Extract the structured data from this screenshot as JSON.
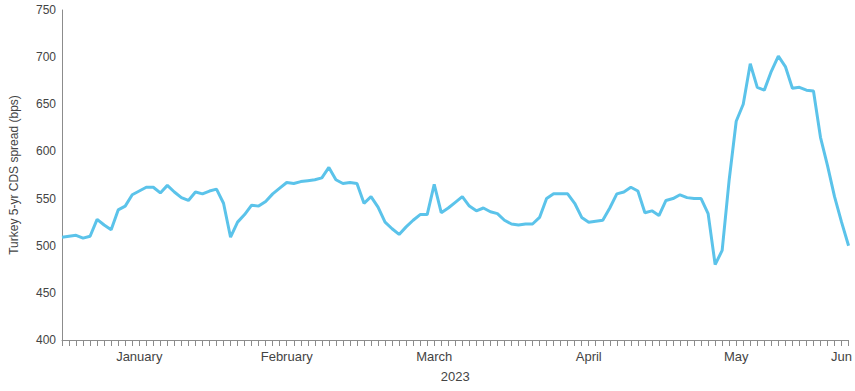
{
  "chart_data": {
    "type": "line",
    "xlabel": "2023",
    "ylabel": "Turkey 5-yr CDS spread (bps)",
    "categories": [
      null,
      null,
      null,
      null,
      null,
      null,
      null,
      null,
      null,
      null,
      null,
      "January",
      null,
      null,
      null,
      null,
      null,
      null,
      null,
      null,
      null,
      null,
      null,
      null,
      null,
      null,
      null,
      null,
      null,
      null,
      null,
      null,
      "February",
      null,
      null,
      null,
      null,
      null,
      null,
      null,
      null,
      null,
      null,
      null,
      null,
      null,
      null,
      null,
      null,
      null,
      null,
      null,
      null,
      "March",
      null,
      null,
      null,
      null,
      null,
      null,
      null,
      null,
      null,
      null,
      null,
      null,
      null,
      null,
      null,
      null,
      null,
      null,
      null,
      null,
      null,
      "April",
      null,
      null,
      null,
      null,
      null,
      null,
      null,
      null,
      null,
      null,
      null,
      null,
      null,
      null,
      null,
      null,
      null,
      null,
      null,
      null,
      "May",
      null,
      null,
      null,
      null,
      null,
      null,
      null,
      null,
      null,
      null,
      null,
      null,
      null,
      null,
      "Jun",
      null
    ],
    "values": [
      509,
      510,
      511,
      508,
      510,
      528,
      522,
      517,
      538,
      542,
      554,
      558,
      562,
      562,
      556,
      564,
      557,
      551,
      548,
      557,
      555,
      558,
      560,
      545,
      509,
      525,
      533,
      543,
      542,
      547,
      555,
      561,
      567,
      566,
      568,
      569,
      570,
      572,
      583,
      570,
      566,
      567,
      566,
      545,
      552,
      541,
      525,
      518,
      512,
      520,
      527,
      533,
      533,
      565,
      535,
      540,
      546,
      552,
      542,
      537,
      540,
      536,
      534,
      527,
      523,
      522,
      523,
      523,
      530,
      550,
      555,
      555,
      555,
      545,
      530,
      525,
      526,
      527,
      540,
      555,
      557,
      562,
      558,
      535,
      537,
      532,
      548,
      550,
      554,
      551,
      550,
      550,
      534,
      480,
      495,
      570,
      632,
      650,
      693,
      668,
      665,
      685,
      701,
      690,
      667,
      668,
      665,
      664,
      615,
      585,
      552,
      525,
      500
    ],
    "color": "#5bc3ea",
    "ylim": [
      400,
      750
    ],
    "yticks": [
      400,
      450,
      500,
      550,
      600,
      650,
      700,
      750
    ],
    "grid": false
  }
}
